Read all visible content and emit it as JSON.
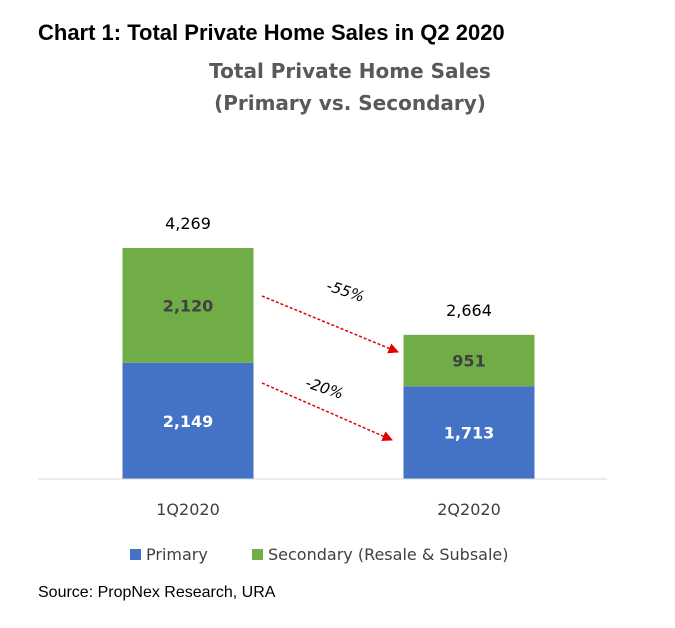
{
  "heading": "Chart 1: Total Private Home Sales in Q2 2020",
  "source": "Source: PropNex Research, URA",
  "chart_data": {
    "type": "bar",
    "stacked": true,
    "title": "Total Private Home Sales",
    "subtitle": "(Primary vs. Secondary)",
    "categories": [
      "1Q2020",
      "2Q2020"
    ],
    "series": [
      {
        "name": "Primary",
        "values": [
          2149,
          1713
        ],
        "labels": [
          "2,149",
          "1,713"
        ],
        "color": "#4472C4",
        "label_color": "#FFFFFF"
      },
      {
        "name": "Secondary (Resale & Subsale)",
        "values": [
          2120,
          951
        ],
        "labels": [
          "2,120",
          "951"
        ],
        "color": "#70AD47",
        "label_color": "#404040"
      }
    ],
    "totals": [
      "4,269",
      "2,664"
    ],
    "annotations": [
      "-55%",
      "-20%"
    ],
    "legend_position": "bottom",
    "grid": false,
    "ylim": [
      0,
      4269
    ]
  }
}
